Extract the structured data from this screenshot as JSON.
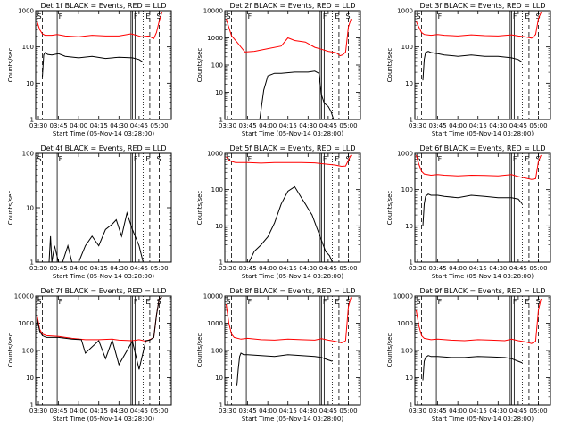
{
  "figure": {
    "xlabel": "Start Time (05-Nov-14 03:28:00)",
    "ylabel": "Counts/sec",
    "xticks": [
      "03:30",
      "03:45",
      "04:00",
      "04:15",
      "04:30",
      "04:45",
      "05:00"
    ],
    "x_range": [
      "03:28",
      "05:09"
    ],
    "solid_markers": [
      "03:44",
      "04:39",
      "04:40",
      "04:42"
    ],
    "dashed_markers": [
      "03:33",
      "04:53",
      "05:00"
    ],
    "dotted_markers": [
      "04:48"
    ],
    "colors": {
      "events": "#000000",
      "lld": "#ff0000"
    }
  },
  "chart_data": [
    {
      "type": "line",
      "title": "Det 1f BLACK = Events, RED = LLD",
      "xlabel": "Start Time (05-Nov-14 03:28:00)",
      "ylabel": "Counts/sec",
      "yscale": "log",
      "ylim": [
        1,
        1000
      ],
      "yticks": [
        "1",
        "10",
        "100",
        "1000"
      ],
      "marker_labels": [
        "S",
        "F",
        "F",
        "E",
        "S"
      ],
      "series": [
        {
          "color": "#ff0000",
          "x": [
            "03:29",
            "03:31",
            "03:33",
            "03:35",
            "03:40",
            "03:44",
            "03:50",
            "04:00",
            "04:10",
            "04:20",
            "04:30",
            "04:39",
            "04:43",
            "04:47",
            "04:52",
            "04:56",
            "04:58",
            "05:00",
            "05:02"
          ],
          "values": [
            500,
            300,
            230,
            210,
            210,
            220,
            200,
            190,
            210,
            200,
            200,
            230,
            210,
            190,
            200,
            170,
            250,
            520,
            900
          ]
        },
        {
          "color": "#000000",
          "x": [
            "03:33",
            "03:34",
            "03:35",
            "03:37",
            "03:40",
            "03:45",
            "03:50",
            "04:00",
            "04:10",
            "04:20",
            "04:30",
            "04:40",
            "04:45",
            "04:48"
          ],
          "values": [
            15,
            60,
            70,
            62,
            60,
            65,
            55,
            50,
            55,
            48,
            52,
            50,
            45,
            38
          ]
        }
      ]
    },
    {
      "type": "line",
      "title": "Det 2f BLACK = Events, RED = LLD",
      "xlabel": "Start Time (05-Nov-14 03:28:00)",
      "ylabel": "Counts/sec",
      "yscale": "log",
      "ylim": [
        1,
        10000
      ],
      "yticks": [
        "1",
        "10",
        "100",
        "1000",
        "10000"
      ],
      "marker_labels": [
        "S",
        "F",
        "F",
        "E",
        "S"
      ],
      "series": [
        {
          "color": "#ff0000",
          "x": [
            "03:29",
            "03:33",
            "03:37",
            "03:43",
            "03:50",
            "04:00",
            "04:10",
            "04:15",
            "04:20",
            "04:28",
            "04:35",
            "04:40",
            "04:45",
            "04:48",
            "04:51",
            "04:54",
            "04:56",
            "04:58",
            "05:00",
            "05:02"
          ],
          "values": [
            5000,
            1200,
            700,
            300,
            320,
            400,
            500,
            1000,
            800,
            700,
            450,
            380,
            320,
            300,
            280,
            220,
            240,
            300,
            2500,
            5000
          ]
        },
        {
          "color": "#000000",
          "x": [
            "03:54",
            "03:57",
            "04:00",
            "04:05",
            "04:10",
            "04:20",
            "04:30",
            "04:35",
            "04:38",
            "04:40",
            "04:42",
            "04:45",
            "04:47",
            "04:49"
          ],
          "values": [
            1,
            12,
            40,
            50,
            50,
            55,
            55,
            60,
            50,
            8,
            4,
            3,
            2,
            1
          ]
        }
      ]
    },
    {
      "type": "line",
      "title": "Det 3f BLACK = Events, RED = LLD",
      "xlabel": "Start Time (05-Nov-14 03:28:00)",
      "ylabel": "Counts/sec",
      "yscale": "log",
      "ylim": [
        1,
        1000
      ],
      "yticks": [
        "1",
        "10",
        "100",
        "1000"
      ],
      "marker_labels": [
        "S",
        "F",
        "F",
        "E",
        "S"
      ],
      "series": [
        {
          "color": "#ff0000",
          "x": [
            "03:29",
            "03:31",
            "03:33",
            "03:35",
            "03:40",
            "03:45",
            "03:50",
            "04:00",
            "04:10",
            "04:20",
            "04:30",
            "04:40",
            "04:45",
            "04:50",
            "04:55",
            "04:58",
            "05:00",
            "05:02"
          ],
          "values": [
            500,
            350,
            250,
            220,
            210,
            220,
            210,
            200,
            215,
            205,
            200,
            215,
            200,
            190,
            175,
            220,
            600,
            900
          ]
        },
        {
          "color": "#000000",
          "x": [
            "03:34",
            "03:35",
            "03:36",
            "03:38",
            "03:40",
            "03:45",
            "03:50",
            "04:00",
            "04:10",
            "04:20",
            "04:30",
            "04:40",
            "04:45",
            "04:48"
          ],
          "values": [
            12,
            45,
            70,
            75,
            70,
            65,
            60,
            55,
            60,
            55,
            55,
            50,
            45,
            38
          ]
        }
      ]
    },
    {
      "type": "line",
      "title": "Det 4f BLACK = Events, RED = LLD",
      "xlabel": "Start Time (05-Nov-14 03:28:00)",
      "ylabel": "Counts/sec",
      "yscale": "log",
      "ylim": [
        1,
        100
      ],
      "yticks": [
        "1",
        "10",
        "100"
      ],
      "marker_labels": [
        "S",
        "F",
        "F",
        "E",
        "S"
      ],
      "series": [
        {
          "color": "#000000",
          "x": [
            "03:38",
            "03:39",
            "03:40",
            "03:42",
            "03:45",
            "03:48",
            "03:52",
            "03:55",
            "04:00",
            "04:05",
            "04:10",
            "04:15",
            "04:20",
            "04:25",
            "04:28",
            "04:32",
            "04:36",
            "04:40",
            "04:45",
            "04:48"
          ],
          "values": [
            1,
            3,
            1,
            2,
            1,
            1,
            2,
            1,
            1,
            2,
            3,
            2,
            4,
            5,
            6,
            3,
            8,
            4,
            2,
            1
          ]
        }
      ]
    },
    {
      "type": "line",
      "title": "Det 5f BLACK = Events, RED = LLD",
      "xlabel": "Start Time (05-Nov-14 03:28:00)",
      "ylabel": "Counts/sec",
      "yscale": "log",
      "ylim": [
        1,
        1000
      ],
      "yticks": [
        "1",
        "10",
        "100",
        "1000"
      ],
      "marker_labels": [
        "S",
        "F",
        "F",
        "E",
        "S"
      ],
      "series": [
        {
          "color": "#ff0000",
          "x": [
            "03:29",
            "03:31",
            "03:33",
            "03:36",
            "03:45",
            "03:55",
            "04:05",
            "04:15",
            "04:25",
            "04:35",
            "04:40",
            "04:45",
            "04:50",
            "04:55",
            "04:58",
            "05:00",
            "05:02"
          ],
          "values": [
            800,
            650,
            600,
            560,
            560,
            540,
            560,
            560,
            560,
            550,
            520,
            500,
            480,
            440,
            450,
            650,
            900
          ]
        },
        {
          "color": "#000000",
          "x": [
            "03:46",
            "03:50",
            "03:55",
            "04:00",
            "04:05",
            "04:10",
            "04:15",
            "04:20",
            "04:25",
            "04:28",
            "04:30",
            "04:33",
            "04:36",
            "04:40",
            "04:43",
            "04:46",
            "04:48"
          ],
          "values": [
            1,
            2,
            3,
            5,
            12,
            40,
            90,
            120,
            60,
            40,
            30,
            20,
            10,
            4,
            2,
            1.5,
            1
          ]
        }
      ]
    },
    {
      "type": "line",
      "title": "Det 6f BLACK = Events, RED = LLD",
      "xlabel": "Start Time (05-Nov-14 03:28:00)",
      "ylabel": "Counts/sec",
      "yscale": "log",
      "ylim": [
        1,
        1000
      ],
      "yticks": [
        "1",
        "10",
        "100",
        "1000"
      ],
      "marker_labels": [
        "S",
        "F",
        "F",
        "E",
        "S"
      ],
      "series": [
        {
          "color": "#ff0000",
          "x": [
            "03:29",
            "03:31",
            "03:33",
            "03:35",
            "03:40",
            "03:45",
            "03:50",
            "04:00",
            "04:10",
            "04:20",
            "04:30",
            "04:40",
            "04:45",
            "04:50",
            "04:55",
            "04:58",
            "05:00",
            "05:02"
          ],
          "values": [
            900,
            500,
            320,
            270,
            250,
            260,
            250,
            240,
            250,
            245,
            240,
            260,
            230,
            210,
            190,
            200,
            600,
            900
          ]
        },
        {
          "color": "#000000",
          "x": [
            "03:34",
            "03:35",
            "03:36",
            "03:38",
            "03:40",
            "03:45",
            "03:50",
            "04:00",
            "04:10",
            "04:20",
            "04:30",
            "04:40",
            "04:45",
            "04:48"
          ],
          "values": [
            10,
            40,
            65,
            75,
            70,
            70,
            65,
            60,
            70,
            65,
            60,
            60,
            55,
            40
          ]
        }
      ]
    },
    {
      "type": "line",
      "title": "Det 7f BLACK = Events, RED = LLD",
      "xlabel": "Start Time (05-Nov-14 03:28:00)",
      "ylabel": "Counts/sec",
      "yscale": "log",
      "ylim": [
        1,
        10000
      ],
      "yticks": [
        "1",
        "10",
        "100",
        "1000",
        "10000"
      ],
      "marker_labels": [
        "S",
        "F",
        "F",
        "E",
        "S"
      ],
      "series": [
        {
          "color": "#ff0000",
          "x": [
            "03:29",
            "03:31",
            "03:33",
            "03:36",
            "03:45",
            "03:55",
            "04:05",
            "04:15",
            "04:25",
            "04:30",
            "04:40",
            "04:45",
            "04:50",
            "04:53",
            "04:56",
            "04:58",
            "05:00",
            "05:02"
          ],
          "values": [
            2000,
            600,
            400,
            350,
            330,
            280,
            250,
            250,
            260,
            240,
            230,
            250,
            220,
            250,
            300,
            2000,
            8000,
            9000
          ]
        },
        {
          "color": "#000000",
          "x": [
            "03:29",
            "03:31",
            "03:33",
            "03:36",
            "03:45",
            "03:55",
            "04:02",
            "04:05",
            "04:15",
            "04:20",
            "04:25",
            "04:30",
            "04:40",
            "04:45",
            "04:50",
            "04:53",
            "04:56",
            "04:58",
            "05:00",
            "05:02"
          ],
          "values": [
            1500,
            500,
            350,
            300,
            300,
            260,
            250,
            80,
            230,
            50,
            240,
            30,
            220,
            20,
            230,
            240,
            300,
            2000,
            8000,
            9000
          ]
        }
      ]
    },
    {
      "type": "line",
      "title": "Det 8f BLACK = Events, RED = LLD",
      "xlabel": "Start Time (05-Nov-14 03:28:00)",
      "ylabel": "Counts/sec",
      "yscale": "log",
      "ylim": [
        1,
        10000
      ],
      "yticks": [
        "1",
        "10",
        "100",
        "1000",
        "10000"
      ],
      "marker_labels": [
        "S",
        "F",
        "F",
        "E",
        "S"
      ],
      "series": [
        {
          "color": "#ff0000",
          "x": [
            "03:29",
            "03:31",
            "03:33",
            "03:35",
            "03:40",
            "03:45",
            "03:55",
            "04:05",
            "04:15",
            "04:25",
            "04:35",
            "04:40",
            "04:45",
            "04:50",
            "04:55",
            "04:58",
            "05:00",
            "05:02"
          ],
          "values": [
            5000,
            1000,
            400,
            300,
            260,
            280,
            250,
            240,
            260,
            250,
            240,
            270,
            240,
            220,
            190,
            230,
            4000,
            9000
          ]
        },
        {
          "color": "#000000",
          "x": [
            "03:37",
            "03:38",
            "03:39",
            "03:40",
            "03:42",
            "03:45",
            "03:55",
            "04:05",
            "04:15",
            "04:25",
            "04:35",
            "04:40",
            "04:45",
            "04:48"
          ],
          "values": [
            5,
            20,
            60,
            80,
            70,
            70,
            65,
            60,
            70,
            65,
            60,
            55,
            45,
            40
          ]
        }
      ]
    },
    {
      "type": "line",
      "title": "Det 9f BLACK = Events, RED = LLD",
      "xlabel": "Start Time (05-Nov-14 03:28:00)",
      "ylabel": "Counts/sec",
      "yscale": "log",
      "ylim": [
        1,
        10000
      ],
      "yticks": [
        "1",
        "10",
        "100",
        "1000",
        "10000"
      ],
      "marker_labels": [
        "S",
        "F",
        "F",
        "E",
        "S"
      ],
      "series": [
        {
          "color": "#ff0000",
          "x": [
            "03:29",
            "03:31",
            "03:33",
            "03:35",
            "03:40",
            "03:45",
            "03:55",
            "04:05",
            "04:15",
            "04:25",
            "04:35",
            "04:40",
            "04:45",
            "04:50",
            "04:55",
            "04:58",
            "05:00",
            "05:02"
          ],
          "values": [
            3000,
            800,
            350,
            280,
            250,
            260,
            240,
            230,
            250,
            240,
            230,
            260,
            230,
            210,
            180,
            220,
            3000,
            8000
          ]
        },
        {
          "color": "#000000",
          "x": [
            "03:34",
            "03:35",
            "03:36",
            "03:38",
            "03:40",
            "03:45",
            "03:55",
            "04:05",
            "04:15",
            "04:25",
            "04:35",
            "04:40",
            "04:45",
            "04:48"
          ],
          "values": [
            8,
            40,
            55,
            65,
            60,
            60,
            55,
            55,
            60,
            58,
            55,
            50,
            40,
            35
          ]
        }
      ]
    }
  ]
}
